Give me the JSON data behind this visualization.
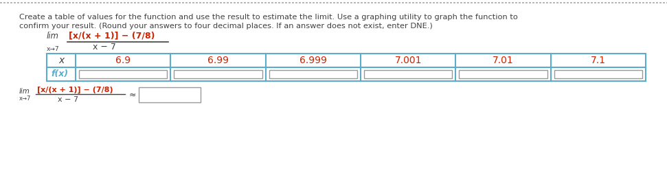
{
  "background_color": "#ffffff",
  "dotted_line_color": "#aaaaaa",
  "text_color": "#404040",
  "red_color": "#cc2200",
  "blue_color": "#5aabcc",
  "paragraph_line1": "Create a table of values for the function and use the result to estimate the limit. Use a graphing utility to graph the function to",
  "paragraph_line2": "confirm your result. (Round your answers to four decimal places. If an answer does not exist, enter DNE.)",
  "lim_text": "lim",
  "arrow_text": "x→7",
  "numerator_text": "[x/(x + 1)] − (7/8)",
  "denominator_text": "x − 7",
  "x_values": [
    "6.9",
    "6.99",
    "6.999",
    "7.001",
    "7.01",
    "7.1"
  ],
  "row1_label": "x",
  "row2_label": "f(x)",
  "table_border_color": "#5aabcc",
  "input_box_color": "#e8e8e8",
  "input_box_border": "#999999",
  "approx_symbol": "≈"
}
